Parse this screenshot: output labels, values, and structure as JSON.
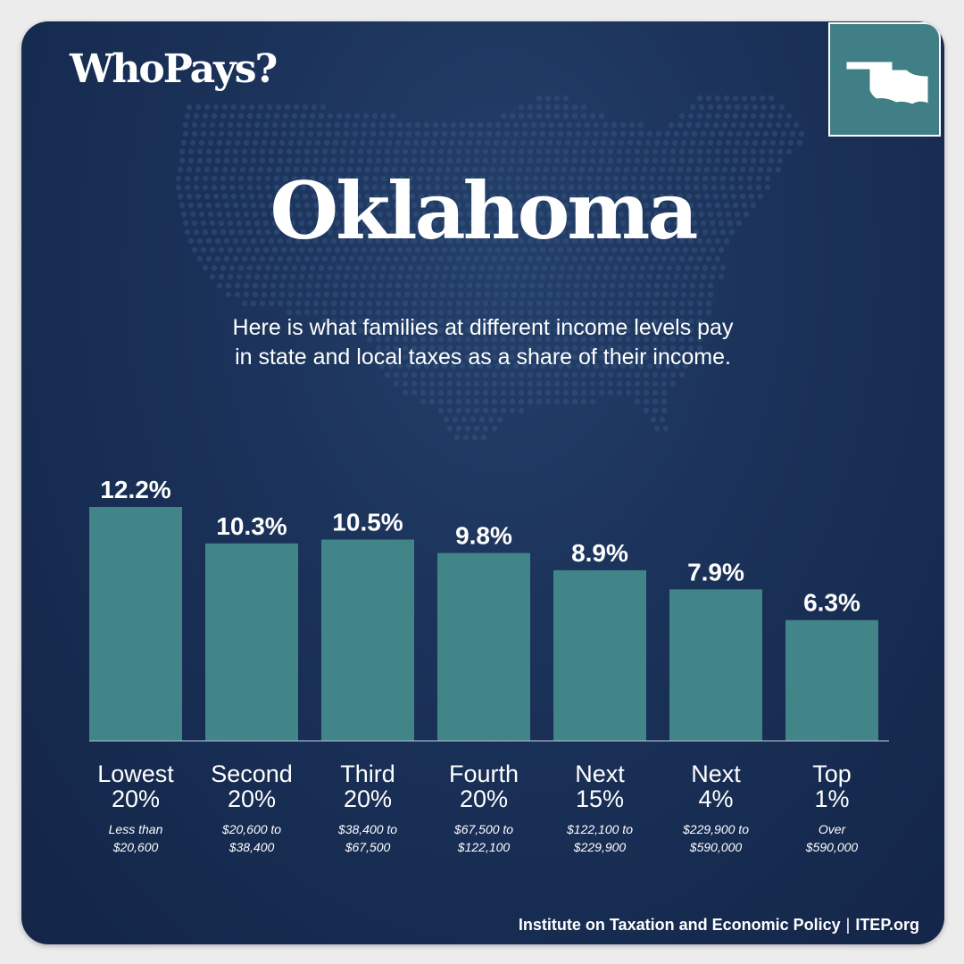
{
  "header": {
    "logo": "WhoPays?",
    "title": "Oklahoma",
    "subtitle_line1": "Here is what families at different income levels pay",
    "subtitle_line2": "in state and local taxes as a share of their income."
  },
  "footer": {
    "org": "Institute on Taxation and Economic Policy",
    "separator": "|",
    "site": "ITEP.org"
  },
  "colors": {
    "background": "#1a3158",
    "bar": "#428589",
    "text": "#ffffff"
  },
  "icons": {
    "state_outline": "oklahoma-outline-icon",
    "background_map": "us-dot-map"
  },
  "chart_data": {
    "type": "bar",
    "categories": [
      "Lowest 20%",
      "Second 20%",
      "Third 20%",
      "Fourth 20%",
      "Next 15%",
      "Next 4%",
      "Top 1%"
    ],
    "category_lines": [
      [
        "Lowest",
        "20%"
      ],
      [
        "Second",
        "20%"
      ],
      [
        "Third",
        "20%"
      ],
      [
        "Fourth",
        "20%"
      ],
      [
        "Next",
        "15%"
      ],
      [
        "Next",
        "4%"
      ],
      [
        "Top",
        "1%"
      ]
    ],
    "income_ranges": [
      [
        "Less than",
        "$20,600"
      ],
      [
        "$20,600 to",
        "$38,400"
      ],
      [
        "$38,400 to",
        "$67,500"
      ],
      [
        "$67,500 to",
        "$122,100"
      ],
      [
        "$122,100 to",
        "$229,900"
      ],
      [
        "$229,900 to",
        "$590,000"
      ],
      [
        "Over",
        "$590,000"
      ]
    ],
    "values": [
      12.2,
      10.3,
      10.5,
      9.8,
      8.9,
      7.9,
      6.3
    ],
    "value_labels": [
      "12.2%",
      "10.3%",
      "10.5%",
      "9.8%",
      "8.9%",
      "7.9%",
      "6.3%"
    ],
    "unit": "%",
    "ylim": [
      0,
      12.2
    ],
    "grid": false,
    "legend": "none"
  }
}
